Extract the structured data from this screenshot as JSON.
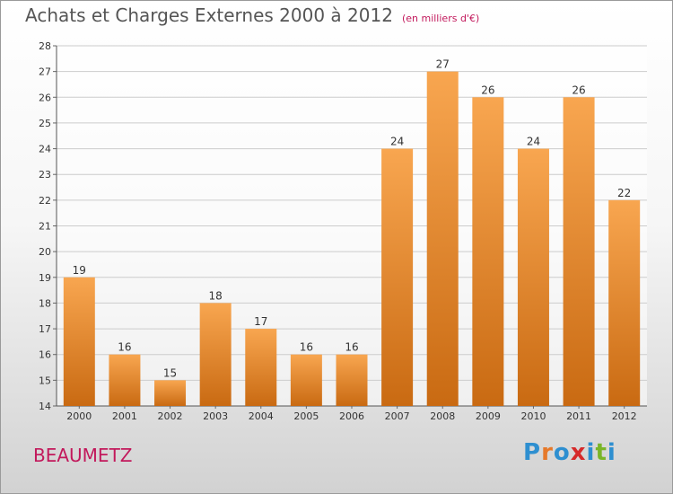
{
  "header": {
    "title": "Achats et Charges Externes 2000 à 2012",
    "subtitle": "(en milliers d'€)"
  },
  "footer": {
    "commune": "BEAUMETZ",
    "logo_letters": [
      "P",
      "r",
      "o",
      "x",
      "i",
      "t",
      "i"
    ],
    "logo_colors": [
      "#2e8fd0",
      "#e6792a",
      "#2e8fd0",
      "#d62a2a",
      "#2e8fd0",
      "#7ab528",
      "#2e8fd0"
    ]
  },
  "colors": {
    "bar_top": "#f8a650",
    "bar_bottom": "#c96a12",
    "grid": "#cccccc"
  },
  "chart_data": {
    "type": "bar",
    "title": "Achats et Charges Externes 2000 à 2012",
    "subtitle": "(en milliers d'€)",
    "categories": [
      "2000",
      "2001",
      "2002",
      "2003",
      "2004",
      "2005",
      "2006",
      "2007",
      "2008",
      "2009",
      "2010",
      "2011",
      "2012"
    ],
    "values": [
      19,
      16,
      15,
      18,
      17,
      16,
      16,
      24,
      27,
      26,
      24,
      26,
      22
    ],
    "ylim": [
      14,
      28
    ],
    "yticks": [
      14,
      15,
      16,
      17,
      18,
      19,
      20,
      21,
      22,
      23,
      24,
      25,
      26,
      27,
      28
    ],
    "grid": true,
    "data_labels": true
  }
}
